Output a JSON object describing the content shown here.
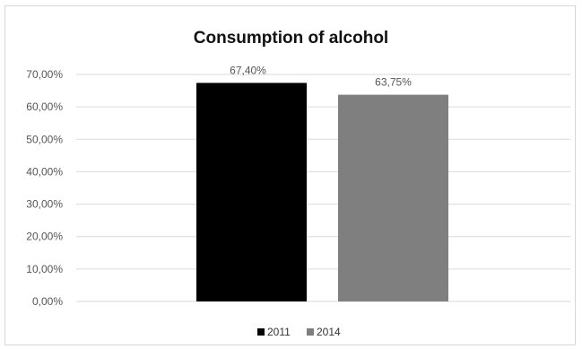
{
  "chart_data": {
    "type": "bar",
    "title": "Consumption of alcohol",
    "xlabel": "",
    "ylabel": "",
    "ylim": [
      0,
      70
    ],
    "y_ticks": [
      "0,00%",
      "10,00%",
      "20,00%",
      "30,00%",
      "40,00%",
      "50,00%",
      "60,00%",
      "70,00%"
    ],
    "y_tick_values": [
      0,
      10,
      20,
      30,
      40,
      50,
      60,
      70
    ],
    "grid": true,
    "legend_position": "bottom",
    "series": [
      {
        "name": "2011",
        "value": 67.4,
        "label": "67,40%",
        "color": "#000000"
      },
      {
        "name": "2014",
        "value": 63.75,
        "label": "63,75%",
        "color": "#7f7f7f"
      }
    ]
  }
}
